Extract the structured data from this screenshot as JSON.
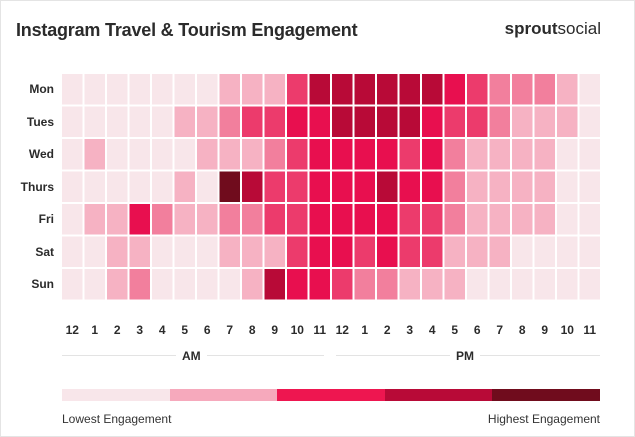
{
  "header": {
    "title": "Instagram Travel & Tourism Engagement",
    "brand_bold": "sprout",
    "brand_light": "social"
  },
  "legend": {
    "low_label": "Lowest Engagement",
    "high_label": "Highest Engagement",
    "colors": [
      "#f8e6ea",
      "#f6a9bc",
      "#ee1650",
      "#b80a37",
      "#700c1d"
    ]
  },
  "chart_data": {
    "type": "heatmap",
    "title": "Instagram Travel & Tourism Engagement",
    "days": [
      "Mon",
      "Tues",
      "Wed",
      "Thurs",
      "Fri",
      "Sat",
      "Sun"
    ],
    "hours": [
      "12",
      "1",
      "2",
      "3",
      "4",
      "5",
      "6",
      "7",
      "8",
      "9",
      "10",
      "11",
      "12",
      "1",
      "2",
      "3",
      "4",
      "5",
      "6",
      "7",
      "8",
      "9",
      "10",
      "11"
    ],
    "periods": [
      "AM",
      "PM"
    ],
    "levels_note": "0 = lowest engagement, 6 = highest engagement",
    "values": [
      [
        0,
        0,
        0,
        0,
        0,
        0,
        0,
        1,
        1,
        1,
        3,
        5,
        5,
        5,
        5,
        5,
        5,
        4,
        3,
        2,
        2,
        2,
        1,
        0
      ],
      [
        0,
        0,
        0,
        0,
        0,
        1,
        1,
        2,
        3,
        3,
        4,
        4,
        5,
        5,
        5,
        5,
        4,
        3,
        3,
        2,
        1,
        1,
        1,
        0
      ],
      [
        0,
        1,
        0,
        0,
        0,
        0,
        1,
        1,
        1,
        2,
        3,
        4,
        4,
        4,
        4,
        3,
        4,
        2,
        1,
        1,
        1,
        1,
        0,
        0
      ],
      [
        0,
        0,
        0,
        0,
        0,
        1,
        0,
        6,
        5,
        3,
        3,
        4,
        4,
        4,
        5,
        4,
        4,
        2,
        1,
        1,
        1,
        1,
        0,
        0
      ],
      [
        0,
        1,
        1,
        4,
        2,
        1,
        1,
        2,
        2,
        3,
        3,
        4,
        4,
        4,
        4,
        3,
        3,
        2,
        1,
        1,
        1,
        1,
        0,
        0
      ],
      [
        0,
        0,
        1,
        1,
        0,
        0,
        0,
        1,
        1,
        1,
        3,
        4,
        4,
        3,
        4,
        3,
        3,
        1,
        1,
        1,
        0,
        0,
        0,
        0
      ],
      [
        0,
        0,
        1,
        2,
        0,
        0,
        0,
        0,
        1,
        5,
        4,
        4,
        3,
        2,
        2,
        1,
        1,
        1,
        0,
        0,
        0,
        0,
        0,
        0
      ]
    ],
    "colors": [
      "#f8e6ea",
      "#f6b2c3",
      "#f27f9d",
      "#ec3b6c",
      "#e80f4f",
      "#b80a37",
      "#700c1d"
    ]
  }
}
